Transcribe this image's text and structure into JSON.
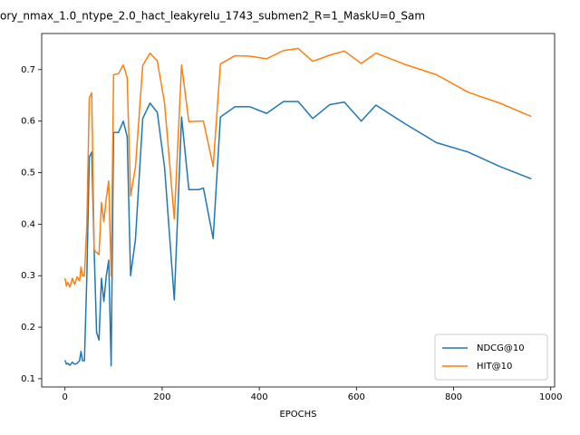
{
  "chart_data": {
    "type": "line",
    "title": "ory_nmax_1.0_ntype_2.0_hact_leakyrelu_1743_submen2_R=1_MaskU=0_Sam",
    "xlabel": "EPOCHS",
    "x": [
      0,
      3,
      6,
      10,
      15,
      20,
      25,
      30,
      33,
      36,
      40,
      45,
      50,
      55,
      60,
      65,
      70,
      75,
      80,
      85,
      90,
      95,
      100,
      110,
      120,
      128,
      135,
      145,
      160,
      175,
      190,
      205,
      225,
      240,
      255,
      275,
      285,
      305,
      320,
      350,
      380,
      415,
      450,
      480,
      510,
      545,
      575,
      610,
      640,
      700,
      765,
      830,
      895,
      960
    ],
    "series": [
      {
        "name": "NDCG@10",
        "color": "#1f77b4",
        "values": [
          0.136,
          0.128,
          0.13,
          0.126,
          0.132,
          0.128,
          0.13,
          0.135,
          0.153,
          0.135,
          0.135,
          0.3,
          0.53,
          0.54,
          0.35,
          0.19,
          0.175,
          0.295,
          0.25,
          0.3,
          0.33,
          0.125,
          0.578,
          0.578,
          0.6,
          0.57,
          0.3,
          0.37,
          0.605,
          0.635,
          0.617,
          0.51,
          0.253,
          0.608,
          0.467,
          0.467,
          0.47,
          0.372,
          0.608,
          0.628,
          0.628,
          0.615,
          0.638,
          0.638,
          0.605,
          0.632,
          0.637,
          0.6,
          0.631,
          0.595,
          0.558,
          0.54,
          0.512,
          0.488
        ]
      },
      {
        "name": "HIT@10",
        "color": "#ff7f0e",
        "values": [
          0.295,
          0.28,
          0.287,
          0.278,
          0.295,
          0.283,
          0.298,
          0.29,
          0.317,
          0.3,
          0.3,
          0.4,
          0.645,
          0.655,
          0.35,
          0.345,
          0.341,
          0.442,
          0.405,
          0.45,
          0.484,
          0.3,
          0.69,
          0.692,
          0.709,
          0.685,
          0.455,
          0.51,
          0.708,
          0.732,
          0.717,
          0.635,
          0.41,
          0.709,
          0.599,
          0.6,
          0.6,
          0.512,
          0.711,
          0.727,
          0.726,
          0.721,
          0.737,
          0.741,
          0.716,
          0.728,
          0.736,
          0.712,
          0.732,
          0.71,
          0.69,
          0.656,
          0.635,
          0.609
        ]
      }
    ],
    "xlim": [
      -48,
      1008
    ],
    "xticks": [
      0,
      200,
      400,
      600,
      800,
      1000
    ],
    "ylim": [
      0.084,
      0.77
    ],
    "yticks": [
      0.1,
      0.2,
      0.3,
      0.4,
      0.5,
      0.6,
      0.7
    ],
    "legend": "lower right",
    "grid": false
  }
}
